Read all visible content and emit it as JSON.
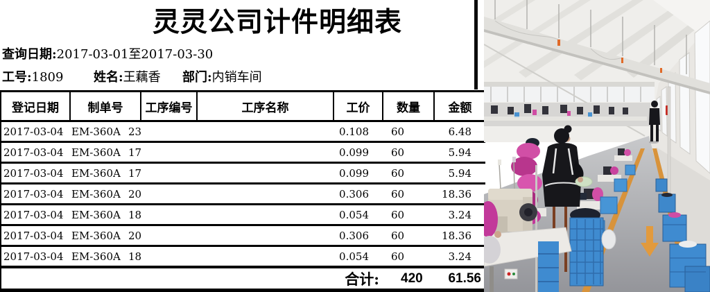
{
  "document": {
    "title": "灵灵公司计件明细表",
    "query": {
      "label": "查询日期:",
      "value": "2017-03-01至2017-03-30"
    },
    "worker": {
      "id_label": "工号:",
      "id_value": "1809",
      "name_label": "姓名:",
      "name_value": "王藕香",
      "dept_label": "部门:",
      "dept_value": "内销车间"
    },
    "table": {
      "headers": [
        "登记日期",
        "制单号",
        "工序编号",
        "工序名称",
        "工价",
        "数量",
        "金额"
      ],
      "rows": [
        {
          "date": "2017-03-04",
          "order_no": "EM-360A",
          "process_no": "23",
          "process_name": "",
          "price": "0.108",
          "qty": "60",
          "amount": "6.48"
        },
        {
          "date": "2017-03-04",
          "order_no": "EM-360A",
          "process_no": "17",
          "process_name": "",
          "price": "0.099",
          "qty": "60",
          "amount": "5.94"
        },
        {
          "date": "2017-03-04",
          "order_no": "EM-360A",
          "process_no": "17",
          "process_name": "",
          "price": "0.099",
          "qty": "60",
          "amount": "5.94"
        },
        {
          "date": "2017-03-04",
          "order_no": "EM-360A",
          "process_no": "20",
          "process_name": "",
          "price": "0.306",
          "qty": "60",
          "amount": "18.36"
        },
        {
          "date": "2017-03-04",
          "order_no": "EM-360A",
          "process_no": "18",
          "process_name": "",
          "price": "0.054",
          "qty": "60",
          "amount": "3.24"
        },
        {
          "date": "2017-03-04",
          "order_no": "EM-360A",
          "process_no": "20",
          "process_name": "",
          "price": "0.306",
          "qty": "60",
          "amount": "18.36"
        },
        {
          "date": "2017-03-04",
          "order_no": "EM-360A",
          "process_no": "18",
          "process_name": "",
          "price": "0.054",
          "qty": "60",
          "amount": "3.24"
        }
      ],
      "total": {
        "label": "合计:",
        "qty": "420",
        "amount": "61.56"
      }
    }
  },
  "photo": {
    "alt": "Garment factory workshop photo: rows of sewing stations with workers and pink fabric bundles, blue plastic crates beside a gray aisle with orange floor markings and a down arrow, bright windows along the right wall",
    "colors": {
      "crate_blue": "#3f8bd0",
      "fabric_pink": "#c8439e",
      "floor_gray": "#97989c",
      "marking_orange": "#d8933b"
    }
  }
}
